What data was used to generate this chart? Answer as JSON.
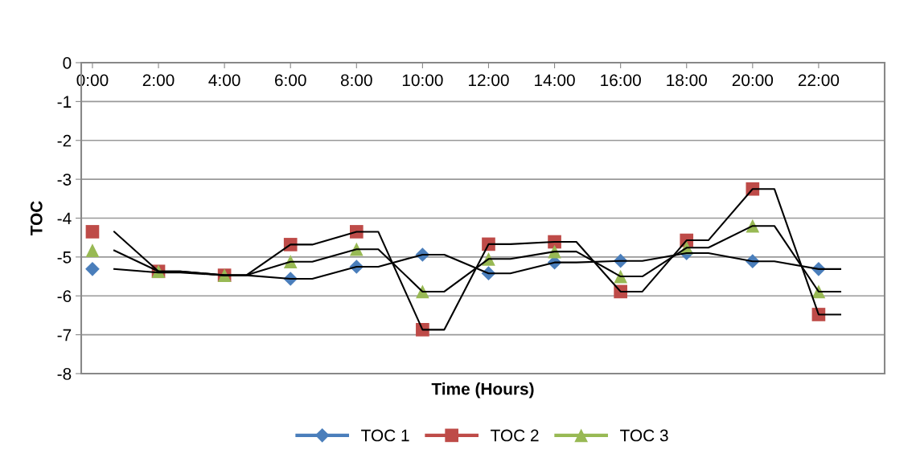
{
  "chart_data": {
    "type": "scatter",
    "xlabel": "Time (Hours)",
    "ylabel": "TOC",
    "xlim": [
      -0.34,
      24
    ],
    "ylim": [
      -8,
      0
    ],
    "yticks": [
      0,
      -1,
      -2,
      -3,
      -4,
      -5,
      -6,
      -7,
      -8
    ],
    "xticks": [
      {
        "value": 0,
        "label": "0:00"
      },
      {
        "value": 2,
        "label": "2:00"
      },
      {
        "value": 4,
        "label": "4:00"
      },
      {
        "value": 6,
        "label": "6:00"
      },
      {
        "value": 8,
        "label": "8:00"
      },
      {
        "value": 10,
        "label": "10:00"
      },
      {
        "value": 12,
        "label": "12:00"
      },
      {
        "value": 14,
        "label": "14:00"
      },
      {
        "value": 16,
        "label": "16:00"
      },
      {
        "value": 18,
        "label": "18:00"
      },
      {
        "value": 20,
        "label": "20:00"
      },
      {
        "value": 22,
        "label": "22:00"
      }
    ],
    "grid": "y",
    "legend": "bottom",
    "series": [
      {
        "name": "TOC 1",
        "color": "#4a7ebb",
        "marker": "diamond",
        "x": [
          0,
          2,
          4,
          6,
          8,
          10,
          12,
          14,
          16,
          18,
          20,
          22
        ],
        "values": [
          -5.31,
          null,
          null,
          -5.56,
          -5.25,
          -4.94,
          -5.42,
          -5.14,
          -5.1,
          -4.9,
          -5.11,
          -5.31
        ]
      },
      {
        "name": "TOC 2",
        "color": "#be4b48",
        "marker": "square",
        "x": [
          0,
          2,
          4,
          6,
          8,
          10,
          12,
          14,
          16,
          18,
          20,
          22
        ],
        "values": [
          -4.35,
          -5.37,
          -5.47,
          -4.68,
          -4.35,
          -6.87,
          -4.67,
          -4.61,
          -5.89,
          -4.57,
          -3.25,
          -6.48
        ]
      },
      {
        "name": "TOC 3",
        "color": "#98b954",
        "marker": "triangle",
        "x": [
          0,
          2,
          4,
          6,
          8,
          10,
          12,
          14,
          16,
          18,
          20,
          22
        ],
        "values": [
          -4.83,
          -5.37,
          -5.47,
          -5.12,
          -4.8,
          -5.89,
          -5.05,
          -4.86,
          -5.5,
          -4.76,
          -4.2,
          -5.89
        ]
      },
      {
        "type": "line",
        "color": "#000000",
        "x": [
          0.66,
          2,
          2.66,
          4,
          4.66,
          6,
          6.66,
          8,
          8.66,
          10,
          10.66,
          12,
          12.66,
          14,
          14.66,
          16,
          16.66,
          18,
          18.66,
          20,
          20.66,
          22,
          22.66
        ],
        "values": [
          -5.31,
          -5.4,
          -5.4,
          -5.47,
          -5.47,
          -5.56,
          -5.56,
          -5.25,
          -5.25,
          -4.94,
          -4.94,
          -5.42,
          -5.42,
          -5.14,
          -5.14,
          -5.1,
          -5.1,
          -4.9,
          -4.9,
          -5.11,
          -5.11,
          -5.31,
          -5.31
        ]
      },
      {
        "type": "line",
        "color": "#000000",
        "x": [
          0.66,
          2,
          2.66,
          4,
          4.66,
          6,
          6.66,
          8,
          8.66,
          10,
          10.66,
          12,
          12.66,
          14,
          14.66,
          16,
          16.66,
          18,
          18.66,
          20,
          20.66,
          22,
          22.66
        ],
        "values": [
          -4.35,
          -5.37,
          -5.37,
          -5.47,
          -5.47,
          -4.68,
          -4.68,
          -4.35,
          -4.35,
          -6.87,
          -6.87,
          -4.67,
          -4.67,
          -4.61,
          -4.61,
          -5.89,
          -5.89,
          -4.57,
          -4.57,
          -3.25,
          -3.25,
          -6.48,
          -6.48
        ]
      },
      {
        "type": "line",
        "color": "#000000",
        "x": [
          0.66,
          2,
          2.66,
          4,
          4.66,
          6,
          6.66,
          8,
          8.66,
          10,
          10.66,
          12,
          12.66,
          14,
          14.66,
          16,
          16.66,
          18,
          18.66,
          20,
          20.66,
          22,
          22.66
        ],
        "values": [
          -4.83,
          -5.37,
          -5.37,
          -5.47,
          -5.47,
          -5.12,
          -5.12,
          -4.8,
          -4.8,
          -5.89,
          -5.89,
          -5.05,
          -5.05,
          -4.86,
          -4.86,
          -5.5,
          -5.5,
          -4.76,
          -4.76,
          -4.2,
          -4.2,
          -5.89,
          -5.89
        ]
      }
    ]
  }
}
